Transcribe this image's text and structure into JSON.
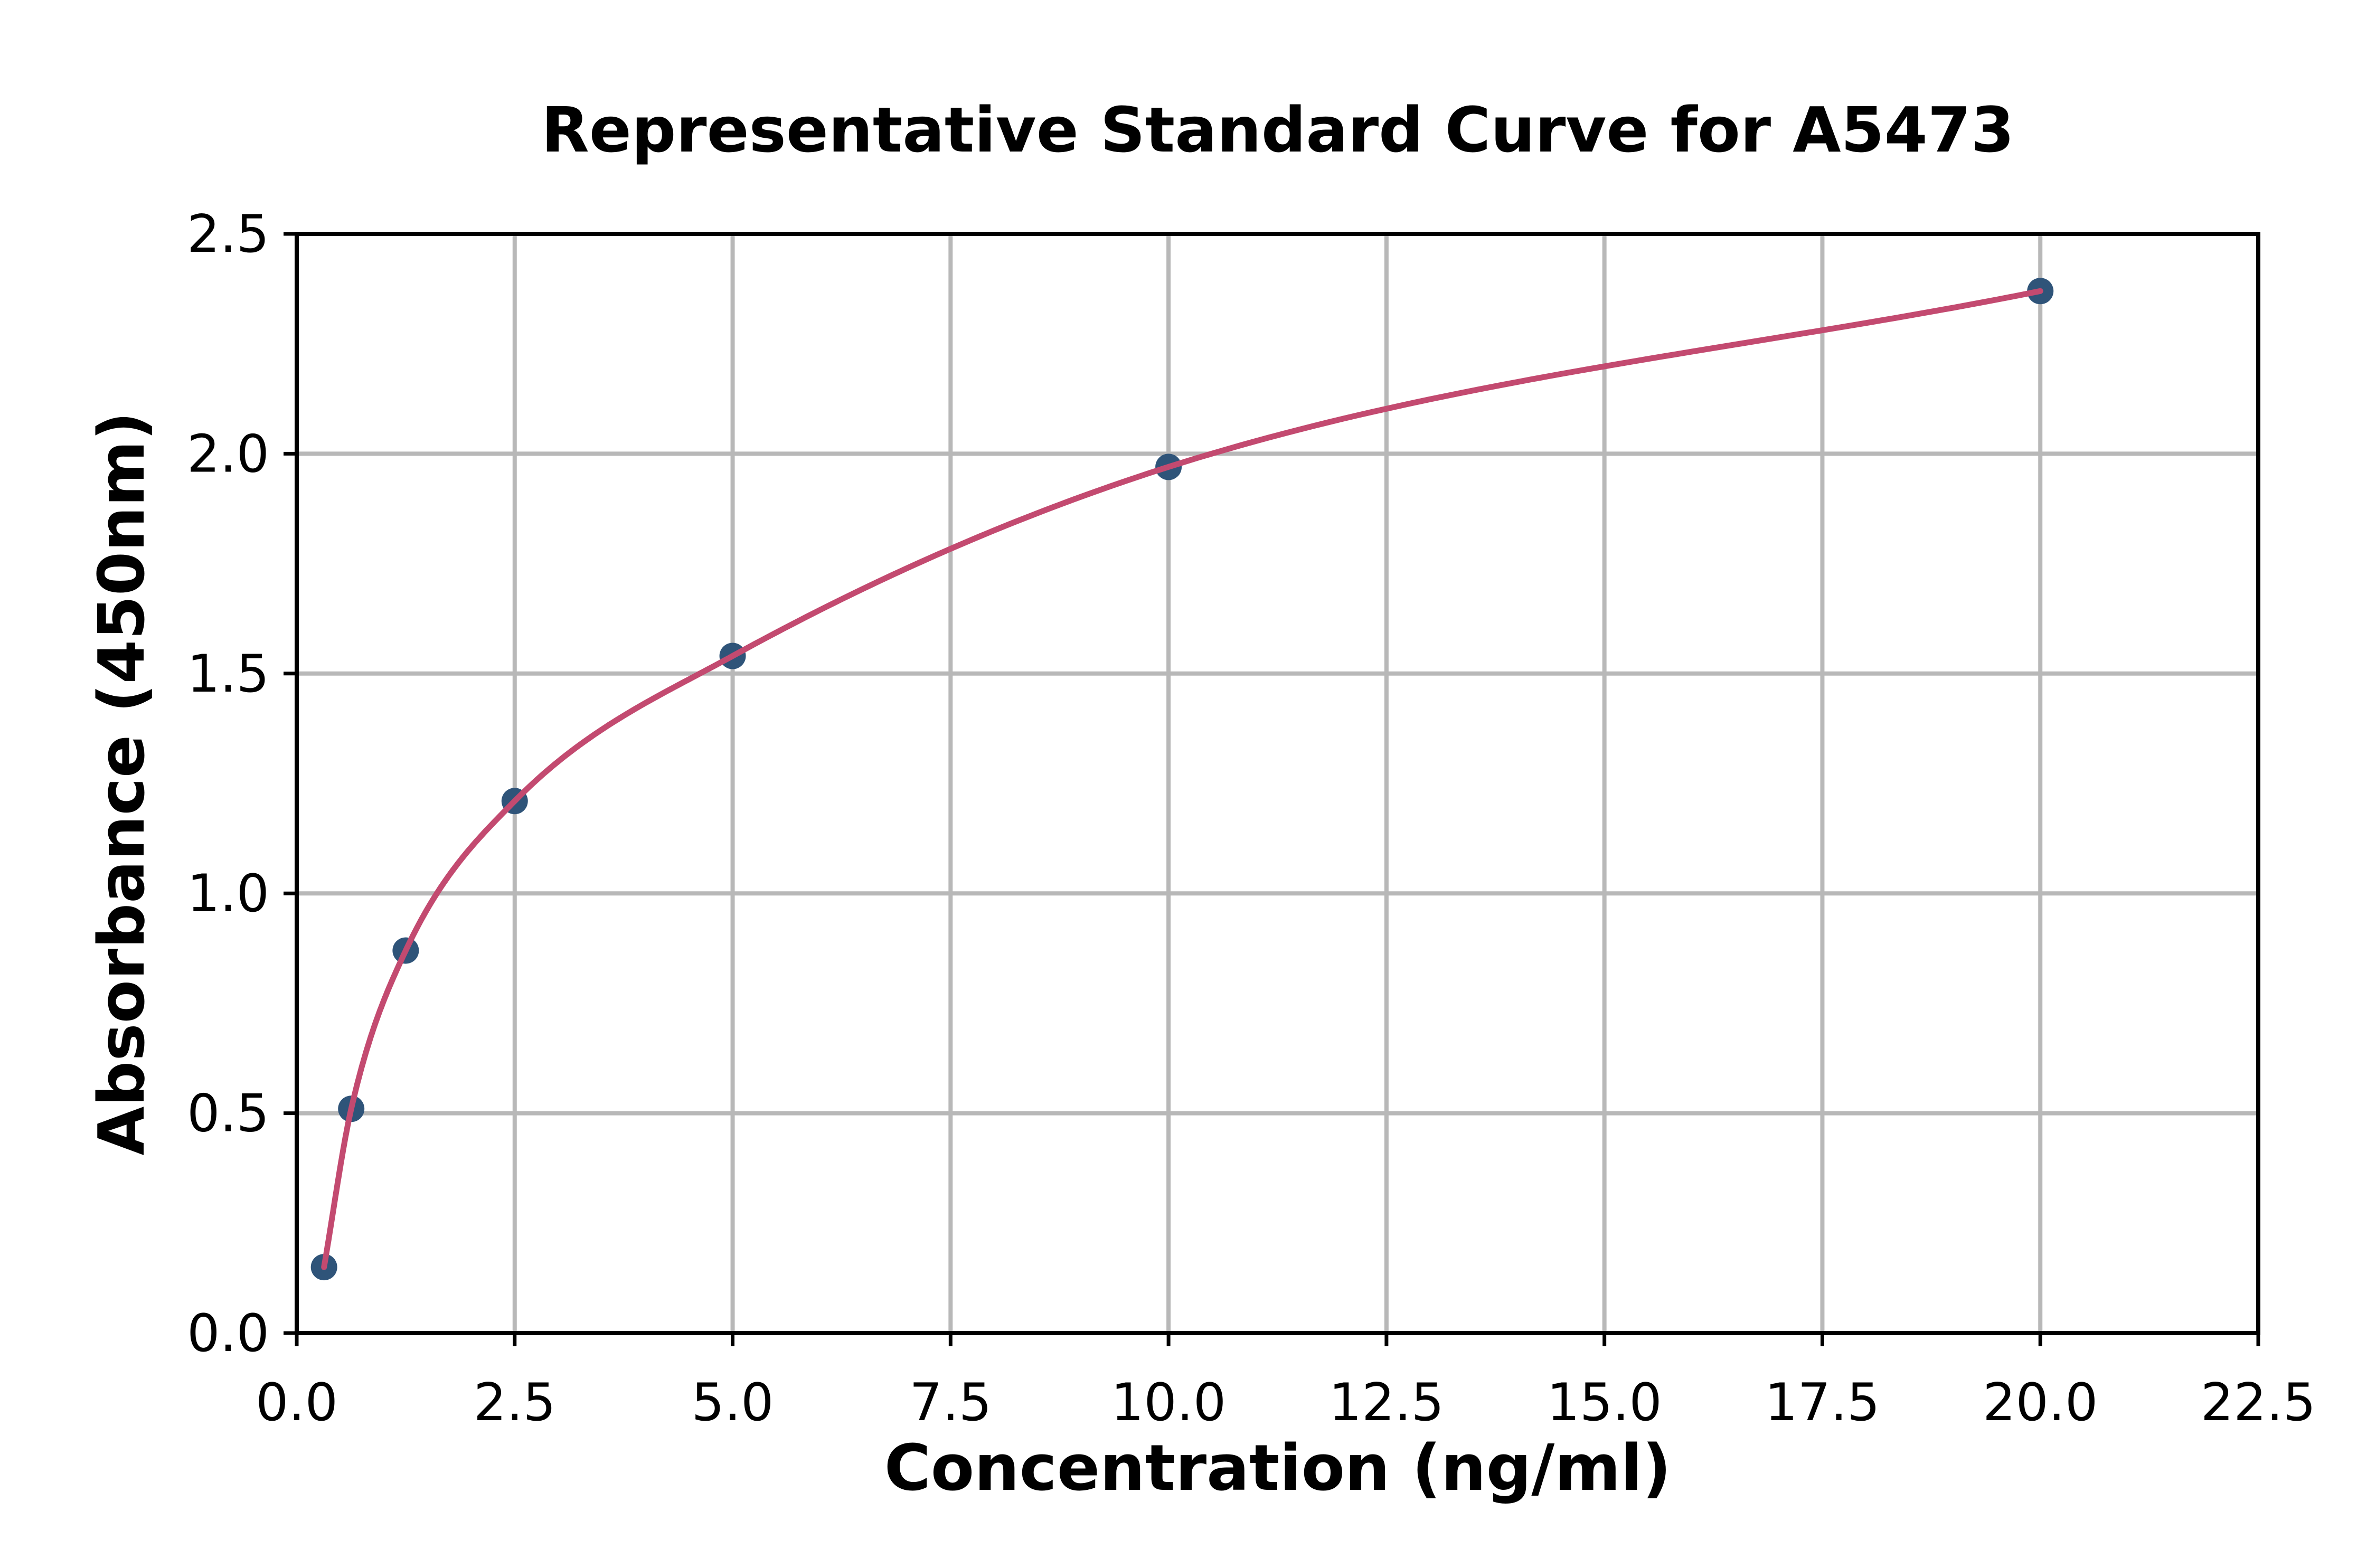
{
  "chart_data": {
    "type": "scatter",
    "title": "Representative Standard Curve for A5473",
    "xlabel": "Concentration (ng/ml)",
    "ylabel": "Absorbance (450nm)",
    "xlim": [
      0,
      22.5
    ],
    "ylim": [
      0,
      2.5
    ],
    "grid": true,
    "x_ticks": [
      0.0,
      2.5,
      5.0,
      7.5,
      10.0,
      12.5,
      15.0,
      17.5,
      20.0,
      22.5
    ],
    "x_tick_labels": [
      "0.0",
      "2.5",
      "5.0",
      "7.5",
      "10.0",
      "12.5",
      "15.0",
      "17.5",
      "20.0",
      "22.5"
    ],
    "y_ticks": [
      0.0,
      0.5,
      1.0,
      1.5,
      2.0,
      2.5
    ],
    "y_tick_labels": [
      "0.0",
      "0.5",
      "1.0",
      "1.5",
      "2.0",
      "2.5"
    ],
    "series": [
      {
        "name": "standard-points",
        "type": "scatter",
        "x": [
          0.313,
          0.625,
          1.25,
          2.5,
          5,
          10,
          20
        ],
        "y": [
          0.15,
          0.51,
          0.87,
          1.21,
          1.54,
          1.97,
          2.37
        ],
        "color": "#2f5479"
      },
      {
        "name": "fitted-curve",
        "type": "line",
        "through_series": "standard-points",
        "color": "#c34a70"
      }
    ],
    "colors": {
      "point": "#2f5479",
      "curve": "#c34a70",
      "grid": "#b8b8b8",
      "spine": "#000000",
      "text": "#000000",
      "background": "#ffffff"
    }
  }
}
